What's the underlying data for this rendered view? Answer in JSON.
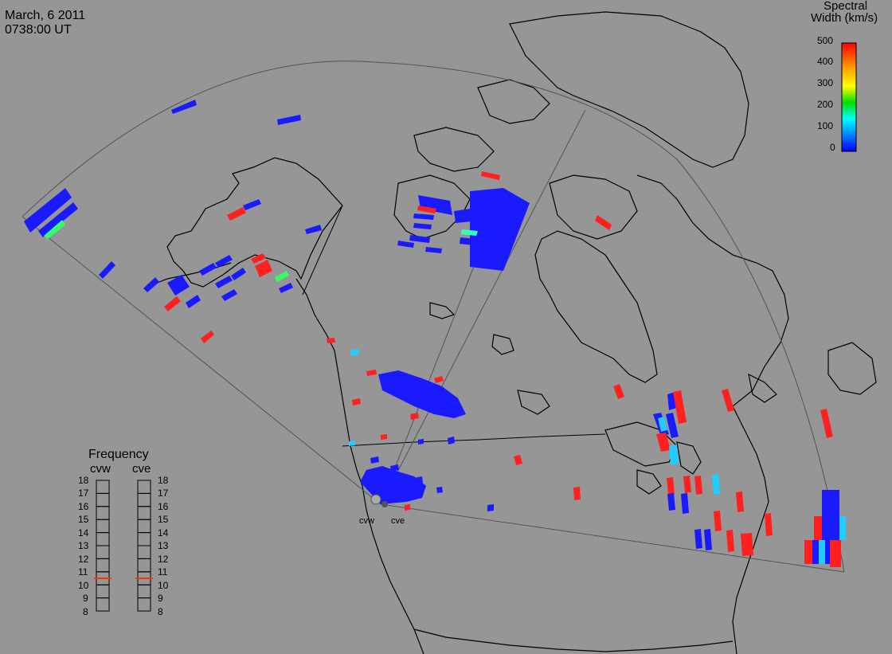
{
  "header": {
    "date": "March, 6 2011",
    "time": "0738:00 UT"
  },
  "legend": {
    "title_line1": "Spectral",
    "title_line2": "Width (km/s)",
    "ticks": [
      "500",
      "400",
      "300",
      "200",
      "100",
      "0"
    ],
    "colors": {
      "high": "#ff0000",
      "mid_high": "#ffaa00",
      "mid": "#ffff00",
      "mid_low": "#00dd00",
      "low_mid": "#00ffff",
      "low": "#0000ff"
    }
  },
  "radars": {
    "west": "cvw",
    "east": "cve"
  },
  "frequency": {
    "title": "Frequency",
    "ticks": [
      "18",
      "17",
      "16",
      "15",
      "14",
      "13",
      "12",
      "11",
      "10",
      "9",
      "8"
    ],
    "cvw_value": 10.5,
    "cve_value": 10.5
  },
  "colors": {
    "background": "#969696",
    "echo_low": "#1a1aff",
    "echo_high": "#ff2020",
    "echo_cyan": "#22ccff",
    "echo_green": "#33ff66",
    "freq_marker": "#ff3300"
  }
}
